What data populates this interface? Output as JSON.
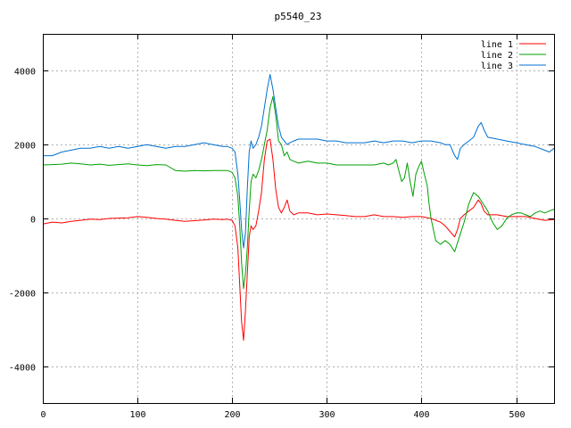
{
  "chart_data": {
    "type": "line",
    "title": "p5540_23",
    "xlabel": "",
    "ylabel": "",
    "xlim": [
      0,
      540
    ],
    "ylim": [
      -5000,
      5000
    ],
    "xticks": [
      0,
      100,
      200,
      300,
      400,
      500
    ],
    "yticks": [
      -4000,
      -2000,
      0,
      2000,
      4000
    ],
    "grid": true,
    "legend_position": "top-right",
    "series": [
      {
        "name": "line 1",
        "color": "#ff0000",
        "x": [
          0,
          10,
          20,
          30,
          40,
          50,
          60,
          70,
          80,
          90,
          100,
          110,
          120,
          130,
          140,
          150,
          160,
          170,
          180,
          190,
          195,
          200,
          203,
          206,
          208,
          210,
          212,
          214,
          216,
          218,
          220,
          222,
          225,
          228,
          231,
          234,
          237,
          240,
          243,
          246,
          249,
          252,
          255,
          258,
          261,
          265,
          270,
          280,
          290,
          300,
          310,
          320,
          330,
          340,
          350,
          360,
          370,
          380,
          390,
          400,
          410,
          420,
          425,
          430,
          435,
          438,
          441,
          445,
          450,
          455,
          460,
          463,
          466,
          470,
          480,
          490,
          500,
          510,
          520,
          530,
          540
        ],
        "y": [
          -150,
          -100,
          -120,
          -80,
          -50,
          -20,
          -30,
          0,
          10,
          20,
          50,
          30,
          0,
          -20,
          -50,
          -80,
          -60,
          -40,
          -20,
          -30,
          -20,
          -50,
          -200,
          -800,
          -1800,
          -2800,
          -3300,
          -2500,
          -1500,
          -500,
          -200,
          -300,
          -200,
          200,
          700,
          1600,
          2100,
          2150,
          1600,
          800,
          300,
          150,
          300,
          500,
          200,
          100,
          150,
          150,
          100,
          120,
          100,
          80,
          50,
          50,
          100,
          50,
          50,
          30,
          50,
          50,
          0,
          -100,
          -200,
          -350,
          -500,
          -300,
          0,
          100,
          200,
          300,
          500,
          400,
          200,
          100,
          100,
          50,
          50,
          50,
          0,
          -50,
          -30
        ]
      },
      {
        "name": "line 2",
        "color": "#00a000",
        "x": [
          0,
          10,
          20,
          30,
          40,
          50,
          60,
          70,
          80,
          90,
          100,
          110,
          120,
          130,
          140,
          150,
          160,
          170,
          180,
          190,
          195,
          200,
          203,
          206,
          208,
          210,
          212,
          214,
          216,
          218,
          220,
          222,
          225,
          228,
          231,
          234,
          237,
          240,
          243,
          246,
          249,
          252,
          255,
          258,
          261,
          265,
          270,
          280,
          290,
          300,
          310,
          320,
          330,
          340,
          350,
          360,
          365,
          370,
          373,
          376,
          379,
          382,
          385,
          388,
          391,
          394,
          397,
          400,
          403,
          406,
          408,
          410,
          415,
          420,
          425,
          430,
          435,
          440,
          445,
          450,
          455,
          460,
          465,
          470,
          475,
          480,
          485,
          490,
          495,
          500,
          505,
          510,
          515,
          520,
          525,
          530,
          535,
          540
        ],
        "y": [
          1450,
          1460,
          1470,
          1500,
          1480,
          1450,
          1470,
          1440,
          1460,
          1480,
          1450,
          1430,
          1460,
          1450,
          1300,
          1280,
          1300,
          1290,
          1300,
          1300,
          1300,
          1250,
          1100,
          600,
          -200,
          -1200,
          -1900,
          -1500,
          -800,
          200,
          1000,
          1200,
          1100,
          1300,
          1600,
          2000,
          2400,
          3000,
          3300,
          2800,
          2100,
          2000,
          1700,
          1800,
          1600,
          1550,
          1500,
          1550,
          1500,
          1500,
          1450,
          1450,
          1450,
          1450,
          1450,
          1500,
          1450,
          1500,
          1600,
          1300,
          1000,
          1100,
          1500,
          1000,
          600,
          1200,
          1400,
          1550,
          1200,
          900,
          400,
          0,
          -600,
          -700,
          -600,
          -700,
          -900,
          -500,
          -100,
          400,
          700,
          600,
          400,
          200,
          -100,
          -300,
          -200,
          0,
          100,
          150,
          150,
          100,
          50,
          150,
          200,
          150,
          200,
          250
        ]
      },
      {
        "name": "line 3",
        "color": "#0070d0",
        "x": [
          0,
          10,
          20,
          30,
          40,
          50,
          60,
          70,
          80,
          90,
          100,
          110,
          120,
          130,
          140,
          150,
          160,
          170,
          180,
          190,
          195,
          200,
          203,
          206,
          208,
          210,
          212,
          214,
          216,
          218,
          220,
          222,
          225,
          228,
          231,
          234,
          237,
          240,
          243,
          246,
          249,
          252,
          255,
          258,
          261,
          265,
          270,
          280,
          290,
          300,
          310,
          320,
          330,
          340,
          350,
          360,
          370,
          380,
          390,
          400,
          410,
          420,
          425,
          430,
          435,
          438,
          441,
          445,
          450,
          455,
          460,
          463,
          466,
          470,
          480,
          490,
          500,
          510,
          520,
          530,
          535,
          540
        ],
        "y": [
          1700,
          1700,
          1800,
          1850,
          1900,
          1900,
          1950,
          1900,
          1950,
          1900,
          1950,
          2000,
          1950,
          1900,
          1950,
          1950,
          2000,
          2050,
          2000,
          1950,
          1950,
          1900,
          1800,
          1200,
          500,
          -300,
          -800,
          -400,
          800,
          1800,
          2100,
          1900,
          2000,
          2200,
          2500,
          3000,
          3500,
          3900,
          3500,
          3000,
          2500,
          2200,
          2100,
          2000,
          2050,
          2100,
          2150,
          2150,
          2150,
          2100,
          2100,
          2050,
          2050,
          2050,
          2100,
          2050,
          2100,
          2100,
          2050,
          2100,
          2100,
          2050,
          2000,
          2000,
          1700,
          1600,
          1900,
          2000,
          2100,
          2200,
          2500,
          2600,
          2400,
          2200,
          2150,
          2100,
          2050,
          2000,
          1950,
          1850,
          1800,
          1900
        ]
      }
    ]
  }
}
